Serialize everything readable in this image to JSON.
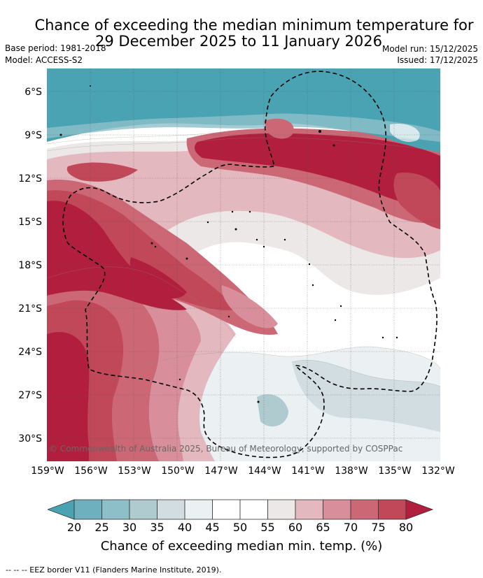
{
  "title": {
    "line1": "Chance of exceeding the median minimum temperature for",
    "line2": "29 December 2025 to 11 January 2026"
  },
  "meta": {
    "base_period": "Base period: 1981-2018",
    "model": "Model: ACCESS-S2",
    "model_run": "Model run: 15/12/2025",
    "issued": "Issued: 17/12/2025"
  },
  "map": {
    "lat_ticks": [
      "6°S",
      "9°S",
      "12°S",
      "15°S",
      "18°S",
      "21°S",
      "24°S",
      "27°S",
      "30°S"
    ],
    "lon_ticks": [
      "159°W",
      "156°W",
      "153°W",
      "150°W",
      "147°W",
      "144°W",
      "141°W",
      "138°W",
      "135°W",
      "132°W"
    ],
    "copyright": "© Commonwealth of Australia 2025, Bureau of Meteorology, supported by COSPPac"
  },
  "colorbar": {
    "ticks": [
      "20",
      "25",
      "30",
      "35",
      "40",
      "45",
      "50",
      "55",
      "60",
      "65",
      "70",
      "75",
      "80"
    ],
    "colors": [
      "#4aa3b3",
      "#6fb0bf",
      "#8dbfc9",
      "#afcbd0",
      "#d2dde2",
      "#ebf0f2",
      "#ffffff",
      "#ffffff",
      "#ede8e8",
      "#e4b8bf",
      "#d88f9b",
      "#cc6876",
      "#c04859",
      "#b21f3e"
    ],
    "title": "Chance of exceeding median min. temp. (%)"
  },
  "footnote": "-- -- -- EEZ border V11 (Flanders Marine Institute, 2019)."
}
